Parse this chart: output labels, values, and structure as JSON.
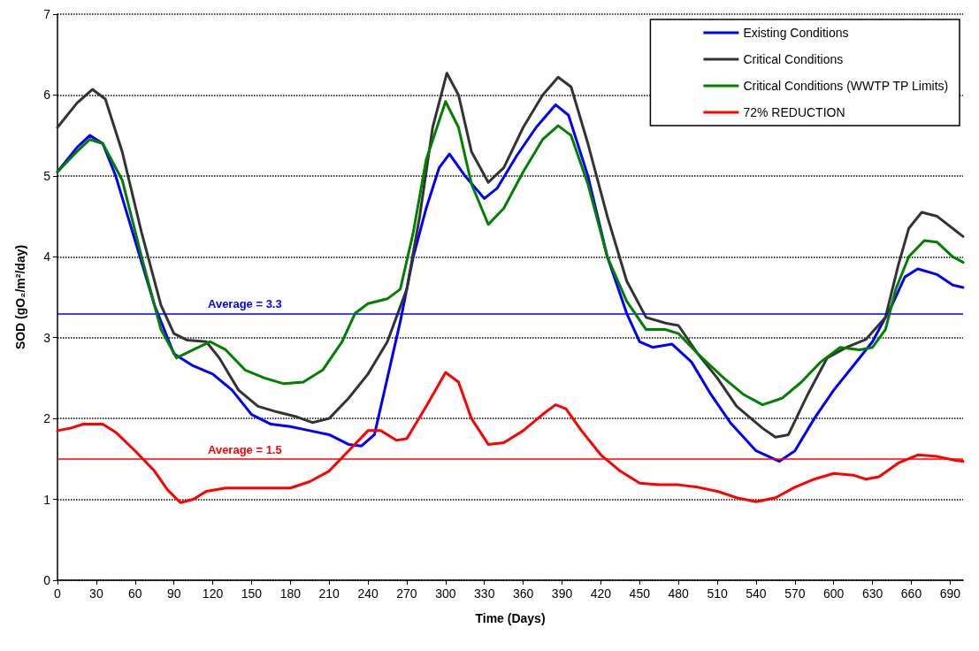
{
  "chart_data": {
    "type": "line",
    "xlabel": "Time (Days)",
    "ylabel": "SOD (gO₂/m²/day)",
    "xlim": [
      0,
      700
    ],
    "xticks": [
      0,
      30,
      60,
      90,
      120,
      150,
      180,
      210,
      240,
      270,
      300,
      330,
      360,
      390,
      420,
      450,
      480,
      510,
      540,
      570,
      600,
      630,
      660,
      690
    ],
    "ylim": [
      0,
      7
    ],
    "yticks": [
      0,
      1,
      2,
      3,
      4,
      5,
      6,
      7
    ],
    "grid": "y",
    "legend": "top right",
    "marker": "none",
    "line_style": "solid",
    "series": [
      {
        "name": "Existing Conditions",
        "color": "#0000ff",
        "x": [
          0,
          15,
          25,
          35,
          45,
          60,
          75,
          90,
          105,
          120,
          135,
          150,
          165,
          180,
          195,
          210,
          225,
          235,
          245,
          255,
          265,
          275,
          285,
          295,
          303,
          315,
          330,
          340,
          355,
          370,
          385,
          395,
          410,
          425,
          440,
          450,
          460,
          475,
          490,
          505,
          520,
          540,
          558,
          570,
          585,
          600,
          615,
          630,
          645,
          655,
          665,
          680,
          692,
          700
        ],
        "values": [
          5.05,
          5.35,
          5.5,
          5.4,
          5.0,
          4.2,
          3.4,
          2.8,
          2.65,
          2.55,
          2.35,
          2.05,
          1.93,
          1.9,
          1.85,
          1.8,
          1.68,
          1.66,
          1.8,
          2.5,
          3.2,
          4.0,
          4.6,
          5.1,
          5.27,
          5.0,
          4.72,
          4.85,
          5.25,
          5.6,
          5.88,
          5.75,
          5.0,
          4.0,
          3.3,
          2.95,
          2.88,
          2.92,
          2.7,
          2.3,
          1.95,
          1.6,
          1.47,
          1.6,
          2.0,
          2.35,
          2.65,
          2.95,
          3.4,
          3.75,
          3.85,
          3.78,
          3.65,
          3.62
        ]
      },
      {
        "name": "Critical Conditions",
        "color": "#333333",
        "x": [
          0,
          15,
          27,
          37,
          50,
          65,
          80,
          90,
          100,
          115,
          125,
          140,
          155,
          170,
          185,
          197,
          210,
          225,
          240,
          255,
          270,
          280,
          290,
          301,
          310,
          320,
          333,
          345,
          360,
          375,
          387,
          397,
          410,
          425,
          440,
          455,
          470,
          480,
          495,
          510,
          525,
          545,
          555,
          565,
          580,
          595,
          610,
          625,
          640,
          650,
          658,
          668,
          680,
          692,
          700
        ],
        "values": [
          5.6,
          5.9,
          6.07,
          5.95,
          5.3,
          4.3,
          3.4,
          3.05,
          2.97,
          2.95,
          2.75,
          2.35,
          2.15,
          2.08,
          2.02,
          1.95,
          2.0,
          2.25,
          2.55,
          2.95,
          3.6,
          4.5,
          5.6,
          6.27,
          6.0,
          5.3,
          4.92,
          5.1,
          5.6,
          6.0,
          6.22,
          6.1,
          5.4,
          4.5,
          3.7,
          3.25,
          3.18,
          3.15,
          2.8,
          2.5,
          2.15,
          1.88,
          1.77,
          1.8,
          2.3,
          2.75,
          2.88,
          2.98,
          3.25,
          3.9,
          4.35,
          4.55,
          4.5,
          4.35,
          4.25
        ]
      },
      {
        "name": "Critical Conditions (WWTP TP Limits)",
        "color": "#007f00",
        "x": [
          0,
          15,
          25,
          35,
          50,
          65,
          80,
          92,
          105,
          118,
          130,
          145,
          160,
          175,
          190,
          205,
          220,
          230,
          240,
          255,
          265,
          275,
          285,
          300,
          310,
          320,
          333,
          345,
          360,
          375,
          387,
          397,
          410,
          425,
          440,
          455,
          470,
          480,
          495,
          515,
          530,
          545,
          560,
          575,
          590,
          605,
          620,
          630,
          640,
          648,
          658,
          670,
          680,
          692,
          700
        ],
        "values": [
          5.05,
          5.3,
          5.45,
          5.4,
          4.95,
          4.0,
          3.1,
          2.75,
          2.85,
          2.95,
          2.85,
          2.6,
          2.5,
          2.43,
          2.45,
          2.6,
          2.95,
          3.3,
          3.42,
          3.48,
          3.6,
          4.3,
          5.2,
          5.92,
          5.6,
          4.9,
          4.4,
          4.6,
          5.05,
          5.45,
          5.62,
          5.5,
          4.9,
          4.0,
          3.45,
          3.1,
          3.1,
          3.05,
          2.8,
          2.5,
          2.3,
          2.17,
          2.25,
          2.45,
          2.7,
          2.88,
          2.85,
          2.88,
          3.1,
          3.6,
          4.0,
          4.2,
          4.18,
          4.0,
          3.93
        ]
      },
      {
        "name": "72% REDUCTION",
        "color": "#ff0000",
        "x": [
          0,
          10,
          20,
          35,
          45,
          60,
          75,
          85,
          95,
          105,
          115,
          130,
          180,
          195,
          210,
          225,
          240,
          250,
          262,
          270,
          285,
          300,
          310,
          320,
          333,
          345,
          360,
          375,
          385,
          393,
          405,
          420,
          435,
          450,
          465,
          480,
          495,
          510,
          525,
          540,
          555,
          570,
          585,
          600,
          615,
          625,
          635,
          650,
          665,
          680,
          695,
          700
        ],
        "values": [
          1.85,
          1.88,
          1.93,
          1.93,
          1.83,
          1.6,
          1.35,
          1.12,
          0.96,
          1.0,
          1.1,
          1.14,
          1.14,
          1.22,
          1.35,
          1.6,
          1.85,
          1.85,
          1.73,
          1.75,
          2.15,
          2.57,
          2.45,
          2.0,
          1.68,
          1.7,
          1.85,
          2.05,
          2.17,
          2.12,
          1.85,
          1.55,
          1.35,
          1.2,
          1.18,
          1.18,
          1.15,
          1.1,
          1.02,
          0.97,
          1.02,
          1.15,
          1.25,
          1.32,
          1.3,
          1.25,
          1.28,
          1.45,
          1.55,
          1.53,
          1.48,
          1.47
        ]
      }
    ],
    "ref_lines": [
      {
        "axis": "y",
        "value": 3.3,
        "label": "Average = 3.3",
        "color": "#0000ff",
        "line_style": "solid"
      },
      {
        "axis": "y",
        "value": 1.5,
        "label": "Average = 1.5",
        "color": "#ff0000",
        "line_style": "solid"
      }
    ]
  }
}
